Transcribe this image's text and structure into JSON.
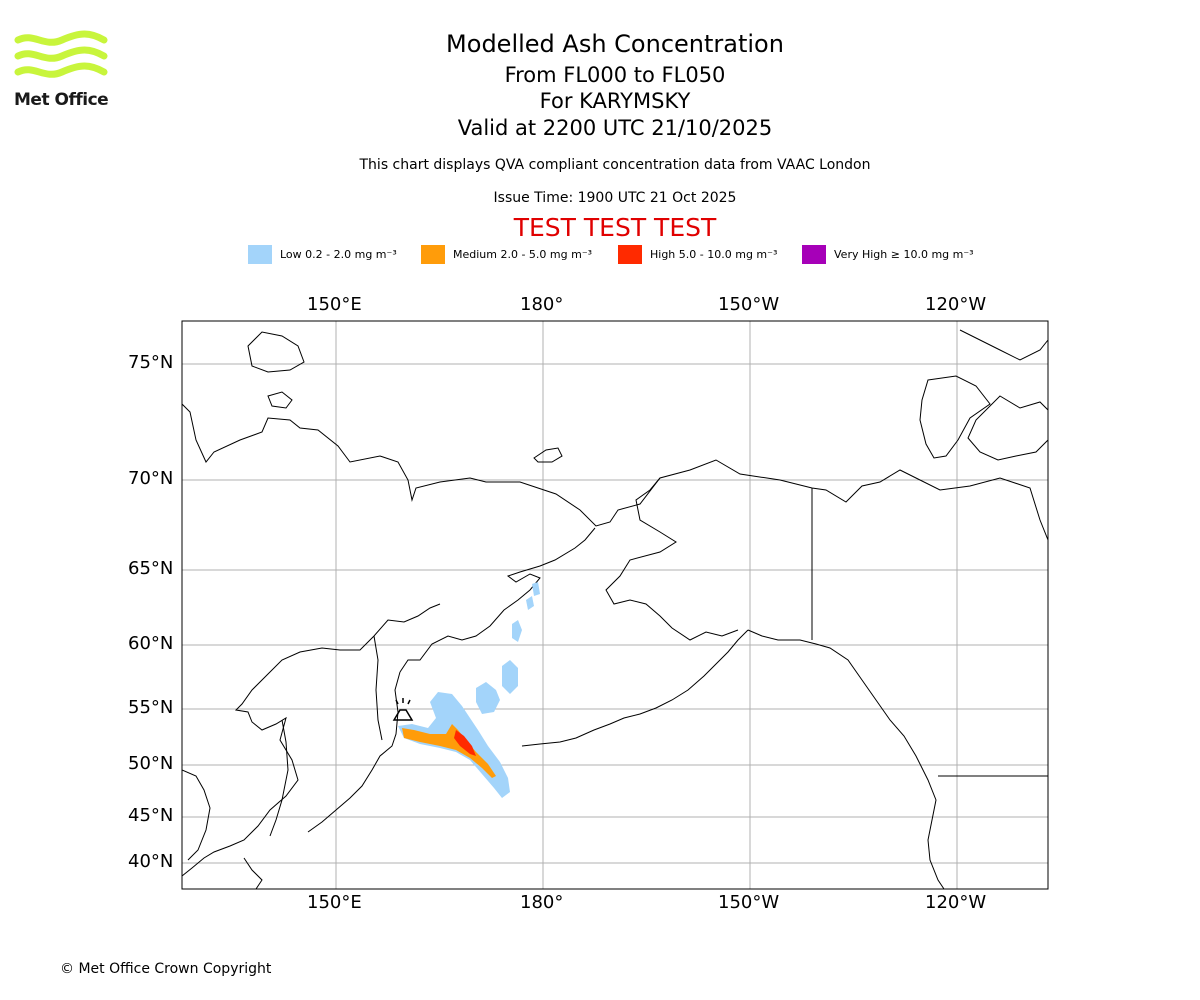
{
  "header": {
    "title": "Modelled Ash Concentration",
    "level_range": "From FL000 to FL050",
    "volcano": "For KARYMSKY",
    "valid_time": "Valid at 2200 UTC 21/10/2025",
    "description": "This chart displays QVA compliant concentration data from VAAC London",
    "issue_time": "Issue Time: 1900 UTC 21 Oct 2025",
    "test_banner": "TEST TEST TEST"
  },
  "logo": {
    "text": "Met Office",
    "color": "#c8f53c"
  },
  "legend": [
    {
      "label": "Low 0.2 - 2.0 mg m⁻³",
      "color": "#a3d4fa"
    },
    {
      "label": "Medium 2.0 - 5.0 mg m⁻³",
      "color": "#ff9c0a"
    },
    {
      "label": "High 5.0 - 10.0 mg m⁻³",
      "color": "#ff2a00"
    },
    {
      "label": "Very High ≥ 10.0 mg m⁻³",
      "color": "#a600b8"
    }
  ],
  "map": {
    "lon_ticks": [
      "150°E",
      "180°",
      "150°W",
      "120°W"
    ],
    "lat_ticks": [
      "75°N",
      "70°N",
      "65°N",
      "60°N",
      "55°N",
      "50°N",
      "45°N",
      "40°N"
    ],
    "volcano_symbol": "volcano-icon"
  },
  "footer": {
    "copyright": "© Met Office Crown Copyright"
  }
}
